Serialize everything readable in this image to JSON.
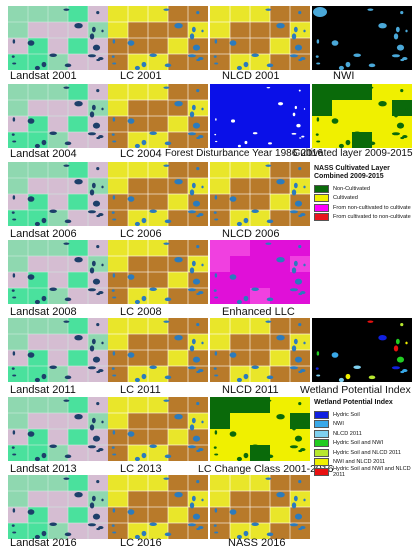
{
  "rows": [
    {
      "labels": [
        "Landsat 2001",
        "LC 2001",
        "NLCD 2001",
        "NWI"
      ]
    },
    {
      "labels": [
        "Landsat 2004",
        "LC 2004",
        "Forest Disturbance Year 1986-2016",
        "Cultivated layer 2009-2015"
      ]
    },
    {
      "labels": [
        "Landsat 2006",
        "LC 2006",
        "NLCD 2006"
      ]
    },
    {
      "labels": [
        "Landsat 2008",
        "LC 2008",
        "Enhanced LLC"
      ]
    },
    {
      "labels": [
        "Landsat 2011",
        "LC 2011",
        "NLCD 2011",
        "Wetland Potential Index"
      ]
    },
    {
      "labels": [
        "Landsat 2013",
        "LC 2013",
        "LC Change Class 2001-2016"
      ]
    },
    {
      "labels": [
        "Landsat 2016",
        "LC 2016",
        "NASS 2016"
      ]
    }
  ],
  "legend_nass": {
    "title_line1": "NASS Cultivated Layer",
    "title_line2": "Combined 2009-2015",
    "items": [
      {
        "label": "Non-Cultivated",
        "color": "#0a6a0a"
      },
      {
        "label": "Cultivated",
        "color": "#f0f000"
      },
      {
        "label": "From non-cultivated to cultivate",
        "color": "#ff00ff"
      },
      {
        "label": "From cultivated to non-cultivate",
        "color": "#e8141e"
      }
    ]
  },
  "legend_wpi": {
    "title": "Wetland Potential Index",
    "items": [
      {
        "label": "Hydric Soil",
        "color": "#1020e0"
      },
      {
        "label": "NWI",
        "color": "#39a8e8"
      },
      {
        "label": "NLCD 2011",
        "color": "#7fd0f0"
      },
      {
        "label": "Hydric Soil and NWI",
        "color": "#22cc22"
      },
      {
        "label": "Hydric Soil and NLCD 2011",
        "color": "#b8e830"
      },
      {
        "label": "NWI and NLCD 2011",
        "color": "#f0f000"
      },
      {
        "label": "Hydric Soil and NWI and NLCD 2011",
        "color": "#e81010"
      }
    ]
  },
  "colors": {
    "landsat_bg": "#8fd8b0",
    "landsat_pink": "#e2b8d8",
    "landsat_green": "#3ee39a",
    "landsat_water": "#1d3f6a",
    "lc_yellow": "#e9e62a",
    "lc_brown": "#b87a2a",
    "lc_blue": "#2b7bbd",
    "lc_white": "#ffffff",
    "nwi_black": "#000000",
    "nwi_blue": "#4aa8d8",
    "fd_blue": "#0a10e8",
    "cult_green": "#0a6a0a",
    "enh_magenta": "#e010d8"
  }
}
